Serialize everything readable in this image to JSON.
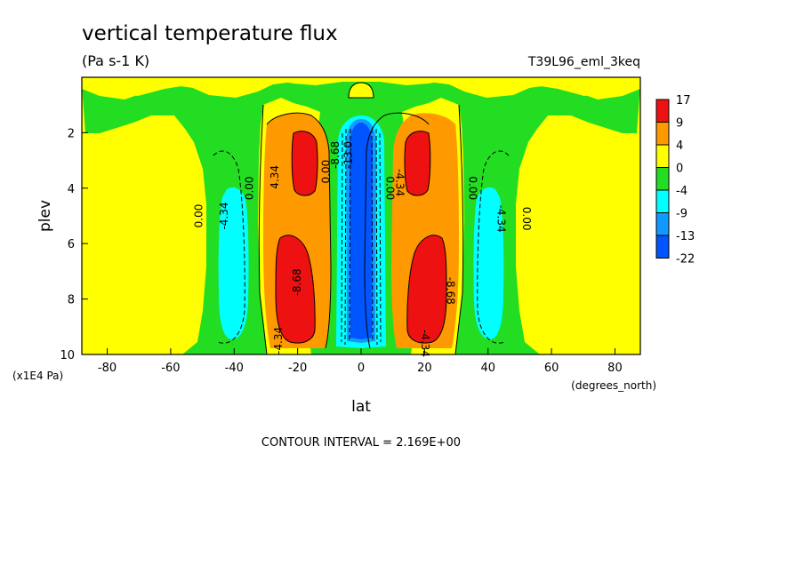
{
  "chart_data": {
    "type": "heatmap",
    "title": "vertical temperature flux",
    "units": "(Pa s-1 K)",
    "run_label": "T39L96_eml_3keq",
    "xlabel": "lat",
    "xunits": "(degrees_north)",
    "ylabel": "plev",
    "yunits": "(x1E4 Pa)",
    "xlim": [
      -88,
      88
    ],
    "ylim": [
      10,
      0
    ],
    "x_ticks": [
      -80,
      -60,
      -40,
      -20,
      0,
      20,
      40,
      60,
      80
    ],
    "y_ticks": [
      2,
      4,
      6,
      8,
      10
    ],
    "footer": "CONTOUR INTERVAL = 2.169E+00",
    "colorbar": {
      "colors": [
        "#ee1111",
        "#ff9900",
        "#ffff00",
        "#22dd22",
        "#00ffff",
        "#1199ff",
        "#0055ff"
      ],
      "labels": [
        "17",
        "9",
        "4",
        "0",
        "-4",
        "-9",
        "-13",
        "-22"
      ]
    },
    "contour_labels": [
      {
        "text": "4.34",
        "x": -26,
        "y": 3.6
      },
      {
        "text": "0.00",
        "x": -34,
        "y": 4.0
      },
      {
        "text": "0.00",
        "x": -50,
        "y": 5.0
      },
      {
        "text": "-4.34",
        "x": -42,
        "y": 5.0
      },
      {
        "text": "-8.68",
        "x": -19,
        "y": 7.4
      },
      {
        "text": "-4.34",
        "x": -25,
        "y": 9.5
      },
      {
        "text": "0.00",
        "x": -10,
        "y": 3.4
      },
      {
        "text": "-8.68",
        "x": -7,
        "y": 2.8
      },
      {
        "text": "-13.0",
        "x": -3,
        "y": 2.8
      },
      {
        "text": "0.00",
        "x": 8,
        "y": 4.0
      },
      {
        "text": "-4.34",
        "x": 11,
        "y": 3.8
      },
      {
        "text": "-8.68",
        "x": 27,
        "y": 7.7
      },
      {
        "text": "-4.34",
        "x": 19,
        "y": 9.6
      },
      {
        "text": "0.00",
        "x": 34,
        "y": 4.0
      },
      {
        "text": "-4.34",
        "x": 43,
        "y": 5.1
      },
      {
        "text": "0.00",
        "x": 51,
        "y": 5.1
      }
    ]
  }
}
